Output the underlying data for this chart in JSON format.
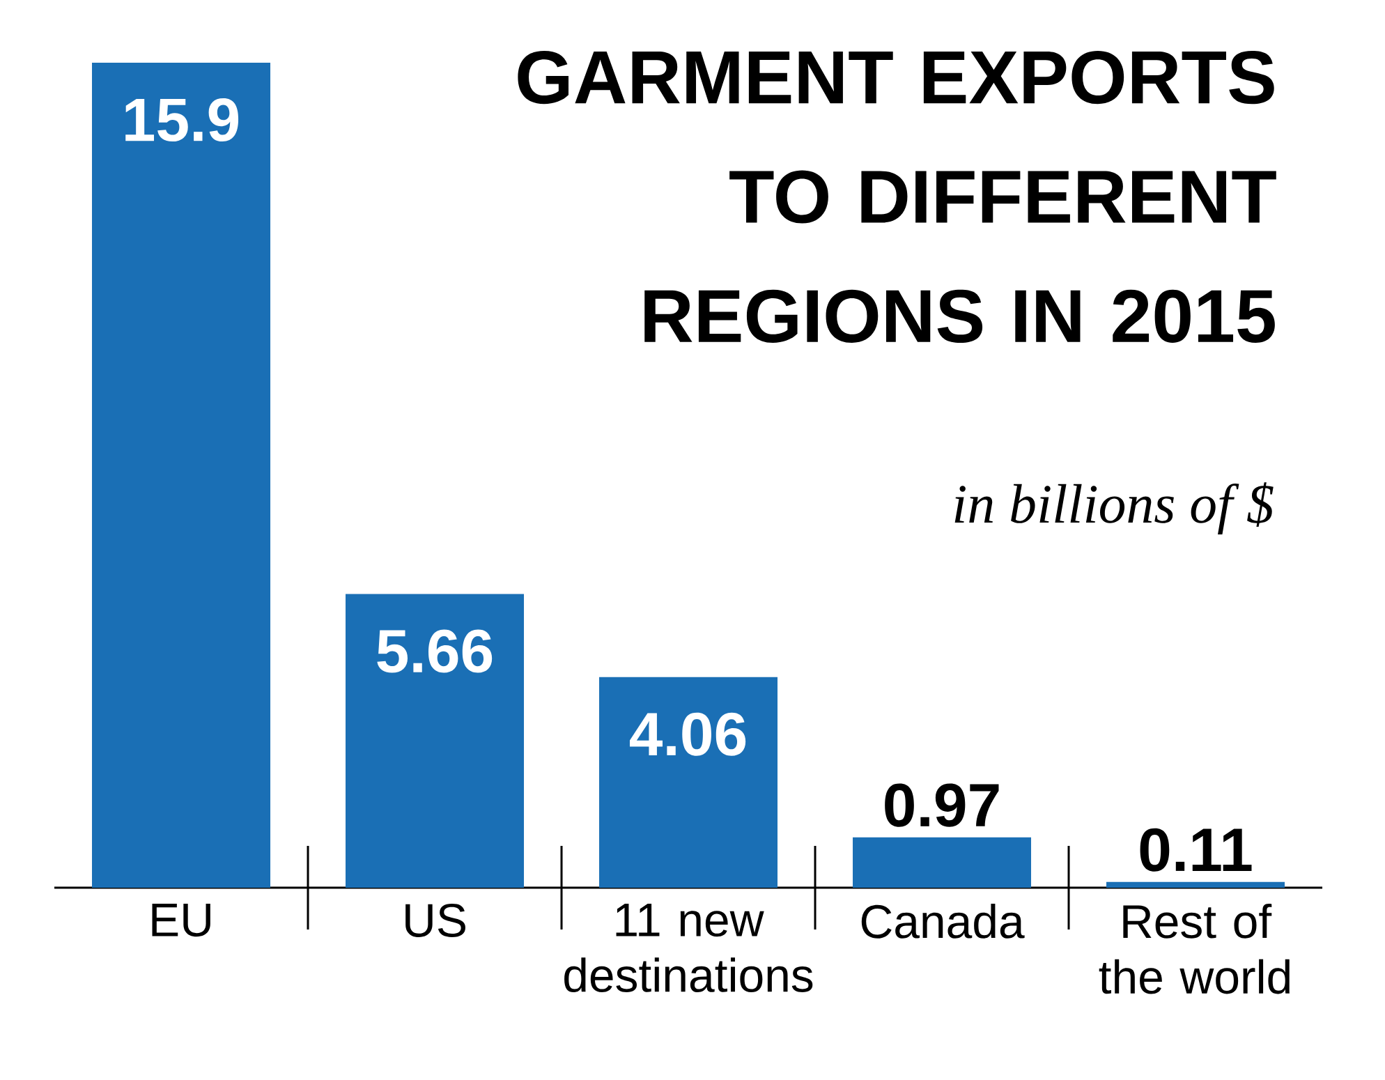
{
  "chart_data": {
    "type": "bar",
    "title": "GARMENT EXPORTS TO DIFFERENT REGIONS IN 2015",
    "subtitle": "in billions of $",
    "categories": [
      "EU",
      "US",
      "11 new destinations",
      "Canada",
      "Rest of the world"
    ],
    "values": [
      15.9,
      5.66,
      4.06,
      0.97,
      0.11
    ],
    "color": "#1a6fb5",
    "data_labels": true
  }
}
